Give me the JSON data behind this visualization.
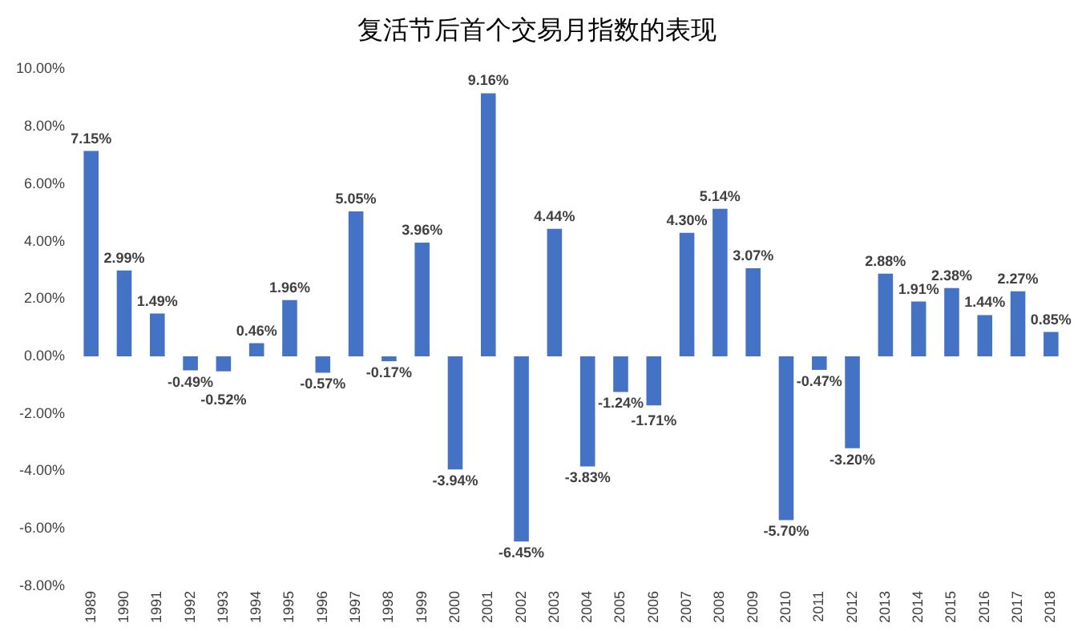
{
  "chart_data": {
    "type": "bar",
    "title": "复活节后首个交易月指数的表现",
    "categories": [
      "1989",
      "1990",
      "1991",
      "1992",
      "1993",
      "1994",
      "1995",
      "1996",
      "1997",
      "1998",
      "1999",
      "2000",
      "2001",
      "2002",
      "2003",
      "2004",
      "2005",
      "2006",
      "2007",
      "2008",
      "2009",
      "2010",
      "2011",
      "2012",
      "2013",
      "2014",
      "2015",
      "2016",
      "2017",
      "2018"
    ],
    "values": [
      7.15,
      2.99,
      1.49,
      -0.49,
      -0.52,
      0.46,
      1.96,
      -0.57,
      5.05,
      -0.17,
      3.96,
      -3.94,
      9.16,
      -6.45,
      4.44,
      -3.83,
      -1.24,
      -1.71,
      4.3,
      5.14,
      3.07,
      -5.7,
      -0.47,
      -3.2,
      2.88,
      1.91,
      2.38,
      1.44,
      2.27,
      0.85
    ],
    "value_labels": [
      "7.15%",
      "2.99%",
      "1.49%",
      "-0.49%",
      "-0.52%",
      "0.46%",
      "1.96%",
      "-0.57%",
      "5.05%",
      "-0.17%",
      "3.96%",
      "-3.94%",
      "9.16%",
      "-6.45%",
      "4.44%",
      "-3.83%",
      "-1.24%",
      "-1.71%",
      "4.30%",
      "5.14%",
      "3.07%",
      "-5.70%",
      "-0.47%",
      "-3.20%",
      "2.88%",
      "1.91%",
      "2.38%",
      "1.44%",
      "2.27%",
      "0.85%"
    ],
    "color": "#4472c4",
    "ylim": [
      -8,
      10
    ],
    "yticks": [
      {
        "value": -8,
        "label": "-8.00%"
      },
      {
        "value": -6,
        "label": "-6.00%"
      },
      {
        "value": -4,
        "label": "-4.00%"
      },
      {
        "value": -2,
        "label": "-2.00%"
      },
      {
        "value": 0,
        "label": "0.00%"
      },
      {
        "value": 2,
        "label": "2.00%"
      },
      {
        "value": 4,
        "label": "4.00%"
      },
      {
        "value": 6,
        "label": "6.00%"
      },
      {
        "value": 8,
        "label": "8.00%"
      },
      {
        "value": 10,
        "label": "10.00%"
      }
    ],
    "grid": false,
    "legend": false
  }
}
